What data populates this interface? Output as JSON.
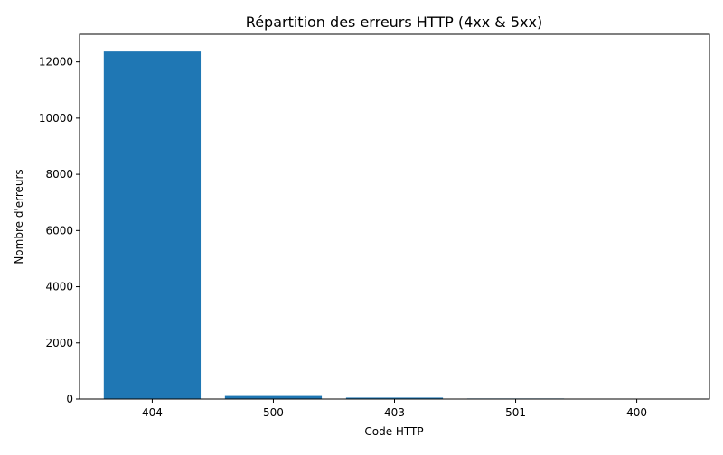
{
  "chart_data": {
    "type": "bar",
    "title": "Répartition des erreurs HTTP (4xx & 5xx)",
    "xlabel": "Code HTTP",
    "ylabel": "Nombre d'erreurs",
    "categories": [
      "404",
      "500",
      "403",
      "501",
      "400"
    ],
    "values": [
      12370,
      110,
      50,
      20,
      10
    ],
    "ylim": [
      0,
      12985
    ],
    "yticks": [
      0,
      2000,
      4000,
      6000,
      8000,
      10000,
      12000
    ],
    "grid": false,
    "legend": "none",
    "bar_color": "#1f77b4"
  }
}
